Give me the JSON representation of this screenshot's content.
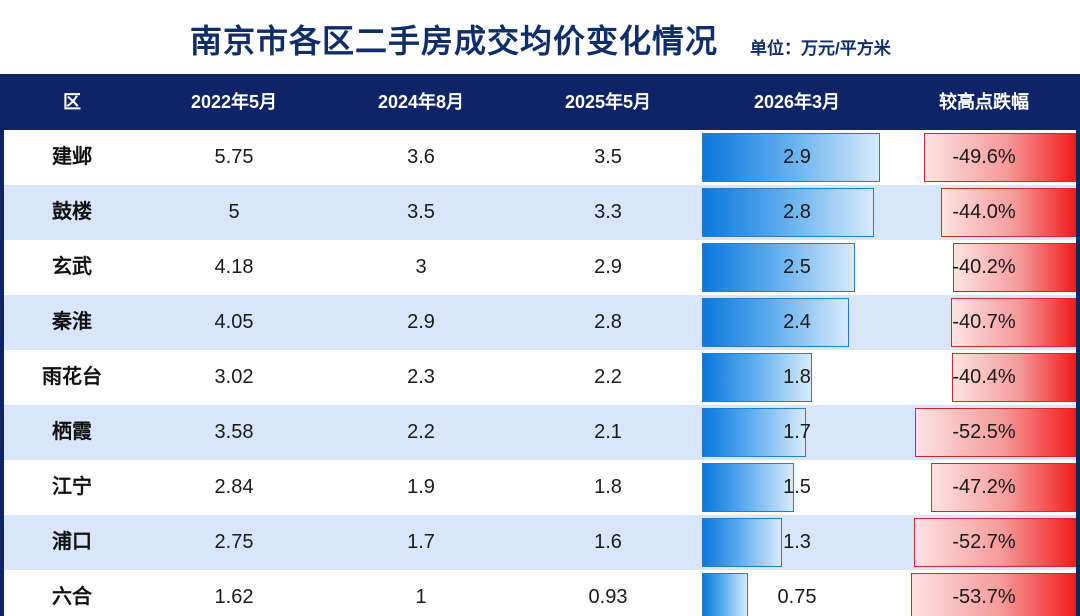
{
  "title": "南京市各区二手房成交均价变化情况",
  "unit_label": "单位：万元/平方米",
  "chart_data": {
    "type": "table",
    "title": "南京市各区二手房成交均价变化情况",
    "unit": "万元/平方米",
    "columns": [
      "区",
      "2022年5月",
      "2024年8月",
      "2025年5月",
      "2026年3月",
      "较高点跌幅"
    ],
    "rows": [
      {
        "district": "建邺",
        "v2022": "5.75",
        "v2024": "3.6",
        "v2025": "3.5",
        "v2026": 2.9,
        "v2026_label": "2.9",
        "drop": -49.6,
        "drop_label": "-49.6%"
      },
      {
        "district": "鼓楼",
        "v2022": "5",
        "v2024": "3.5",
        "v2025": "3.3",
        "v2026": 2.8,
        "v2026_label": "2.8",
        "drop": -44.0,
        "drop_label": "-44.0%"
      },
      {
        "district": "玄武",
        "v2022": "4.18",
        "v2024": "3",
        "v2025": "2.9",
        "v2026": 2.5,
        "v2026_label": "2.5",
        "drop": -40.2,
        "drop_label": "-40.2%"
      },
      {
        "district": "秦淮",
        "v2022": "4.05",
        "v2024": "2.9",
        "v2025": "2.8",
        "v2026": 2.4,
        "v2026_label": "2.4",
        "drop": -40.7,
        "drop_label": "-40.7%"
      },
      {
        "district": "雨花台",
        "v2022": "3.02",
        "v2024": "2.3",
        "v2025": "2.2",
        "v2026": 1.8,
        "v2026_label": "1.8",
        "drop": -40.4,
        "drop_label": "-40.4%"
      },
      {
        "district": "栖霞",
        "v2022": "3.58",
        "v2024": "2.2",
        "v2025": "2.1",
        "v2026": 1.7,
        "v2026_label": "1.7",
        "drop": -52.5,
        "drop_label": "-52.5%"
      },
      {
        "district": "江宁",
        "v2022": "2.84",
        "v2024": "1.9",
        "v2025": "1.8",
        "v2026": 1.5,
        "v2026_label": "1.5",
        "drop": -47.2,
        "drop_label": "-47.2%"
      },
      {
        "district": "浦口",
        "v2022": "2.75",
        "v2024": "1.7",
        "v2025": "1.6",
        "v2026": 1.3,
        "v2026_label": "1.3",
        "drop": -52.7,
        "drop_label": "-52.7%"
      },
      {
        "district": "六合",
        "v2022": "1.62",
        "v2024": "1",
        "v2025": "0.93",
        "v2026": 0.75,
        "v2026_label": "0.75",
        "drop": -53.7,
        "drop_label": "-53.7%"
      }
    ]
  },
  "colors": {
    "header_bg": "#0e2466",
    "alt_row_bg": "#d8e5fb",
    "title_color": "#0f2c6b",
    "bar_blue": "#0a78dc",
    "bar_red": "#f01c1c"
  }
}
